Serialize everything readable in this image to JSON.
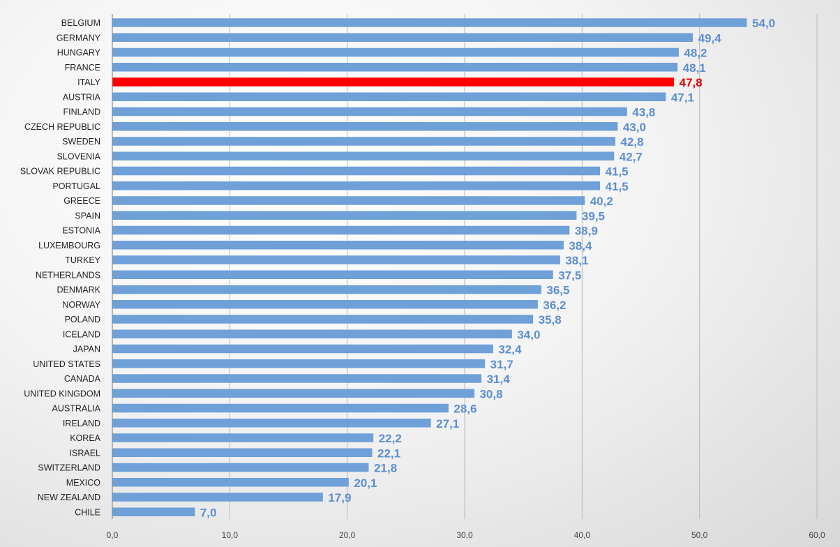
{
  "chart_data": {
    "type": "bar",
    "orientation": "horizontal",
    "title": "",
    "xlabel": "",
    "ylabel": "",
    "xlim": [
      0,
      60
    ],
    "x_ticks": [
      "0,0",
      "10,0",
      "20,0",
      "30,0",
      "40,0",
      "50,0",
      "60,0"
    ],
    "grid": "vertical",
    "legend": "none",
    "colors": {
      "default_bar": "#6fa0d8",
      "highlight_bar": "#ff0000",
      "default_label": "#5b8fd0",
      "highlight_label": "#e00000",
      "category_label": "#222222",
      "axis_label": "#444444",
      "gridline": "#b8b8b8"
    },
    "highlight": "ITALY",
    "categories": [
      "BELGIUM",
      "GERMANY",
      "HUNGARY",
      "FRANCE",
      "ITALY",
      "AUSTRIA",
      "FINLAND",
      "CZECH REPUBLIC",
      "SWEDEN",
      "SLOVENIA",
      "SLOVAK REPUBLIC",
      "PORTUGAL",
      "GREECE",
      "SPAIN",
      "ESTONIA",
      "LUXEMBOURG",
      "TURKEY",
      "NETHERLANDS",
      "DENMARK",
      "NORWAY",
      "POLAND",
      "ICELAND",
      "JAPAN",
      "UNITED STATES",
      "CANADA",
      "UNITED KINGDOM",
      "AUSTRALIA",
      "IRELAND",
      "KOREA",
      "ISRAEL",
      "SWITZERLAND",
      "MEXICO",
      "NEW ZEALAND",
      "CHILE"
    ],
    "values": [
      54.0,
      49.4,
      48.2,
      48.1,
      47.8,
      47.1,
      43.8,
      43.0,
      42.8,
      42.7,
      41.5,
      41.5,
      40.2,
      39.5,
      38.9,
      38.4,
      38.1,
      37.5,
      36.5,
      36.2,
      35.8,
      34.0,
      32.4,
      31.7,
      31.4,
      30.8,
      28.6,
      27.1,
      22.2,
      22.1,
      21.8,
      20.1,
      17.9,
      7.0
    ],
    "data_labels": [
      "54,0",
      "49,4",
      "48,2",
      "48,1",
      "47,8",
      "47,1",
      "43,8",
      "43,0",
      "42,8",
      "42,7",
      "41,5",
      "41,5",
      "40,2",
      "39,5",
      "38,9",
      "38,4",
      "38,1",
      "37,5",
      "36,5",
      "36,2",
      "35,8",
      "34,0",
      "32,4",
      "31,7",
      "31,4",
      "30,8",
      "28,6",
      "27,1",
      "22,2",
      "22,1",
      "21,8",
      "20,1",
      "17,9",
      "7,0"
    ]
  }
}
